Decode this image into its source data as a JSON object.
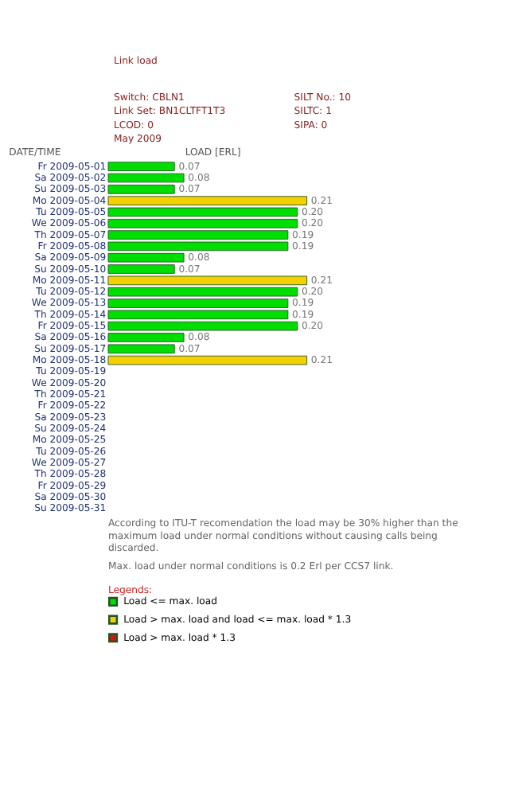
{
  "chart_data": {
    "type": "bar",
    "orientation": "horizontal",
    "title": "Link load",
    "subtitle": "May 2009",
    "annotations": [
      "Switch: CBLN1",
      "SILT No.: 10",
      "Link Set: BN1CLTFT1T3",
      "SILTC: 1",
      "LCOD: 0",
      "SIPA: 0",
      "According to ITU-T recomendation the load may be 30% higher than the maximum load under normal conditions without causing calls being discarded.",
      "Max. load under normal conditions is 0.2 Erl per CCS7 link."
    ],
    "ylabel": "DATE/TIME",
    "xlabel": "LOAD [ERL]",
    "legend_title": "Legends:",
    "legend": "bottom",
    "tick_labels": "y",
    "categories": [
      "Fr 2009-05-01",
      "Sa 2009-05-02",
      "Su 2009-05-03",
      "Mo 2009-05-04",
      "Tu 2009-05-05",
      "We 2009-05-06",
      "Th 2009-05-07",
      "Fr 2009-05-08",
      "Sa 2009-05-09",
      "Su 2009-05-10",
      "Mo 2009-05-11",
      "Tu 2009-05-12",
      "We 2009-05-13",
      "Th 2009-05-14",
      "Fr 2009-05-15",
      "Sa 2009-05-16",
      "Su 2009-05-17",
      "Mo 2009-05-18",
      "Tu 2009-05-19",
      "We 2009-05-20",
      "Th 2009-05-21",
      "Fr 2009-05-22",
      "Sa 2009-05-23",
      "Su 2009-05-24",
      "Mo 2009-05-25",
      "Tu 2009-05-26",
      "We 2009-05-27",
      "Th 2009-05-28",
      "Fr 2009-05-29",
      "Sa 2009-05-30",
      "Su 2009-05-31"
    ],
    "series": [
      {
        "name": "Load <= max. load",
        "color": "#00dd00",
        "values": [
          0.07,
          0.08,
          0.07,
          null,
          0.2,
          0.2,
          0.19,
          0.19,
          0.08,
          0.07,
          null,
          0.2,
          0.19,
          0.19,
          0.2,
          0.08,
          0.07,
          null,
          null,
          null,
          null,
          null,
          null,
          null,
          null,
          null,
          null,
          null,
          null,
          null,
          null
        ],
        "value_labels": [
          "0.07",
          "0.08",
          "0.07",
          null,
          "0.20",
          "0.20",
          "0.19",
          "0.19",
          "0.08",
          "0.07",
          null,
          "0.20",
          "0.19",
          "0.19",
          "0.20",
          "0.08",
          "0.07",
          null,
          null,
          null,
          null,
          null,
          null,
          null,
          null,
          null,
          null,
          null,
          null,
          null,
          null
        ]
      },
      {
        "name": "Load > max. load and load <= max. load * 1.3",
        "color": "#f5d000",
        "values": [
          null,
          null,
          null,
          0.21,
          null,
          null,
          null,
          null,
          null,
          null,
          0.21,
          null,
          null,
          null,
          null,
          null,
          null,
          0.21,
          null,
          null,
          null,
          null,
          null,
          null,
          null,
          null,
          null,
          null,
          null,
          null,
          null
        ],
        "value_labels": [
          null,
          null,
          null,
          "0.21",
          null,
          null,
          null,
          null,
          null,
          null,
          "0.21",
          null,
          null,
          null,
          null,
          null,
          null,
          "0.21",
          null,
          null,
          null,
          null,
          null,
          null,
          null,
          null,
          null,
          null,
          null,
          null,
          null
        ]
      },
      {
        "name": "Load > max. load * 1.3",
        "color": "#dd1111",
        "values": [
          null,
          null,
          null,
          null,
          null,
          null,
          null,
          null,
          null,
          null,
          null,
          null,
          null,
          null,
          null,
          null,
          null,
          null,
          null,
          null,
          null,
          null,
          null,
          null,
          null,
          null,
          null,
          null,
          null,
          null,
          null
        ]
      }
    ]
  }
}
